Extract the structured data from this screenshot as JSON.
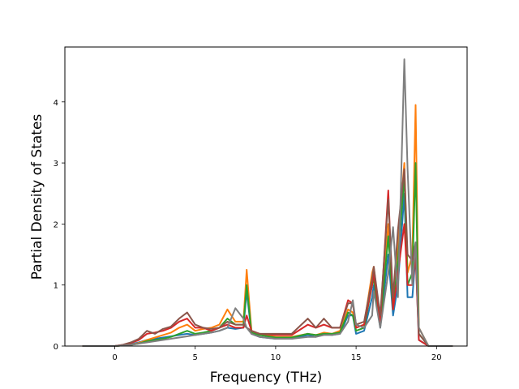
{
  "chart_data": {
    "type": "line",
    "title": "",
    "xlabel": "Frequency (THz)",
    "ylabel": "Partial Density of States",
    "xlim": [
      -3.1,
      21.9
    ],
    "ylim": [
      0,
      4.9
    ],
    "xticks": [
      0,
      5,
      10,
      15,
      20
    ],
    "yticks": [
      0,
      1,
      2,
      3,
      4
    ],
    "grid": false,
    "legend": "none",
    "x": [
      -2,
      -1,
      0,
      0.5,
      1,
      1.5,
      2,
      2.5,
      3,
      3.5,
      4,
      4.5,
      5,
      5.5,
      6,
      6.5,
      7,
      7.5,
      8,
      8.2,
      8.5,
      9,
      10,
      11,
      12,
      12.5,
      13,
      13.5,
      14,
      14.5,
      14.8,
      15,
      15.5,
      16,
      16.1,
      16.5,
      17,
      17.3,
      17.6,
      18,
      18.2,
      18.5,
      18.7,
      18.9,
      19.5,
      21
    ],
    "series": [
      {
        "color": "#1f77b4",
        "values": [
          0,
          0,
          0,
          0.01,
          0.03,
          0.06,
          0.1,
          0.12,
          0.14,
          0.16,
          0.18,
          0.2,
          0.18,
          0.2,
          0.22,
          0.25,
          0.3,
          0.28,
          0.3,
          0.9,
          0.2,
          0.15,
          0.12,
          0.12,
          0.18,
          0.15,
          0.2,
          0.18,
          0.2,
          0.5,
          0.5,
          0.2,
          0.25,
          0.8,
          1.0,
          0.3,
          1.5,
          0.5,
          1.0,
          2.5,
          0.8,
          0.8,
          1.5,
          0.1,
          0,
          0
        ]
      },
      {
        "color": "#ff7f0e",
        "values": [
          0,
          0,
          0,
          0.01,
          0.02,
          0.05,
          0.1,
          0.14,
          0.18,
          0.22,
          0.3,
          0.35,
          0.25,
          0.28,
          0.3,
          0.35,
          0.6,
          0.4,
          0.4,
          1.25,
          0.25,
          0.2,
          0.15,
          0.15,
          0.2,
          0.18,
          0.22,
          0.2,
          0.25,
          0.6,
          0.55,
          0.3,
          0.35,
          1.2,
          1.3,
          0.4,
          2.0,
          0.7,
          1.7,
          3.0,
          1.2,
          1.5,
          3.95,
          0.3,
          0,
          0
        ]
      },
      {
        "color": "#2ca02c",
        "values": [
          0,
          0,
          0,
          0.01,
          0.02,
          0.04,
          0.08,
          0.1,
          0.12,
          0.15,
          0.2,
          0.25,
          0.2,
          0.22,
          0.25,
          0.3,
          0.45,
          0.35,
          0.35,
          1.0,
          0.22,
          0.18,
          0.14,
          0.14,
          0.2,
          0.18,
          0.2,
          0.2,
          0.22,
          0.55,
          0.5,
          0.25,
          0.3,
          1.0,
          1.1,
          0.35,
          1.8,
          0.6,
          1.4,
          2.8,
          1.0,
          1.2,
          3.0,
          0.2,
          0,
          0
        ]
      },
      {
        "color": "#d62728",
        "values": [
          0,
          0,
          0,
          0.02,
          0.05,
          0.1,
          0.2,
          0.22,
          0.25,
          0.3,
          0.4,
          0.45,
          0.3,
          0.3,
          0.25,
          0.3,
          0.35,
          0.3,
          0.3,
          0.5,
          0.25,
          0.2,
          0.18,
          0.18,
          0.35,
          0.3,
          0.35,
          0.3,
          0.3,
          0.75,
          0.7,
          0.3,
          0.35,
          1.0,
          1.2,
          0.4,
          2.55,
          0.6,
          1.2,
          2.0,
          1.0,
          1.0,
          1.5,
          0.1,
          0,
          0
        ]
      },
      {
        "color": "#8c564b",
        "values": [
          0,
          0,
          0,
          0.02,
          0.06,
          0.12,
          0.25,
          0.2,
          0.28,
          0.32,
          0.45,
          0.55,
          0.35,
          0.3,
          0.28,
          0.3,
          0.4,
          0.35,
          0.35,
          0.3,
          0.25,
          0.2,
          0.2,
          0.2,
          0.45,
          0.3,
          0.45,
          0.3,
          0.3,
          0.7,
          0.7,
          0.35,
          0.4,
          1.1,
          1.3,
          0.5,
          2.4,
          0.8,
          1.9,
          2.9,
          1.5,
          1.4,
          1.7,
          0.2,
          0,
          0
        ]
      },
      {
        "color": "#7f7f7f",
        "values": [
          0,
          0,
          0,
          0.01,
          0.02,
          0.04,
          0.06,
          0.08,
          0.1,
          0.12,
          0.14,
          0.16,
          0.18,
          0.2,
          0.22,
          0.25,
          0.3,
          0.62,
          0.45,
          0.3,
          0.2,
          0.15,
          0.12,
          0.12,
          0.15,
          0.15,
          0.18,
          0.18,
          0.2,
          0.4,
          0.75,
          0.35,
          0.3,
          0.5,
          0.9,
          0.3,
          1.2,
          1.95,
          0.8,
          4.7,
          2.9,
          1.0,
          1.7,
          0.3,
          0,
          0
        ]
      }
    ]
  }
}
